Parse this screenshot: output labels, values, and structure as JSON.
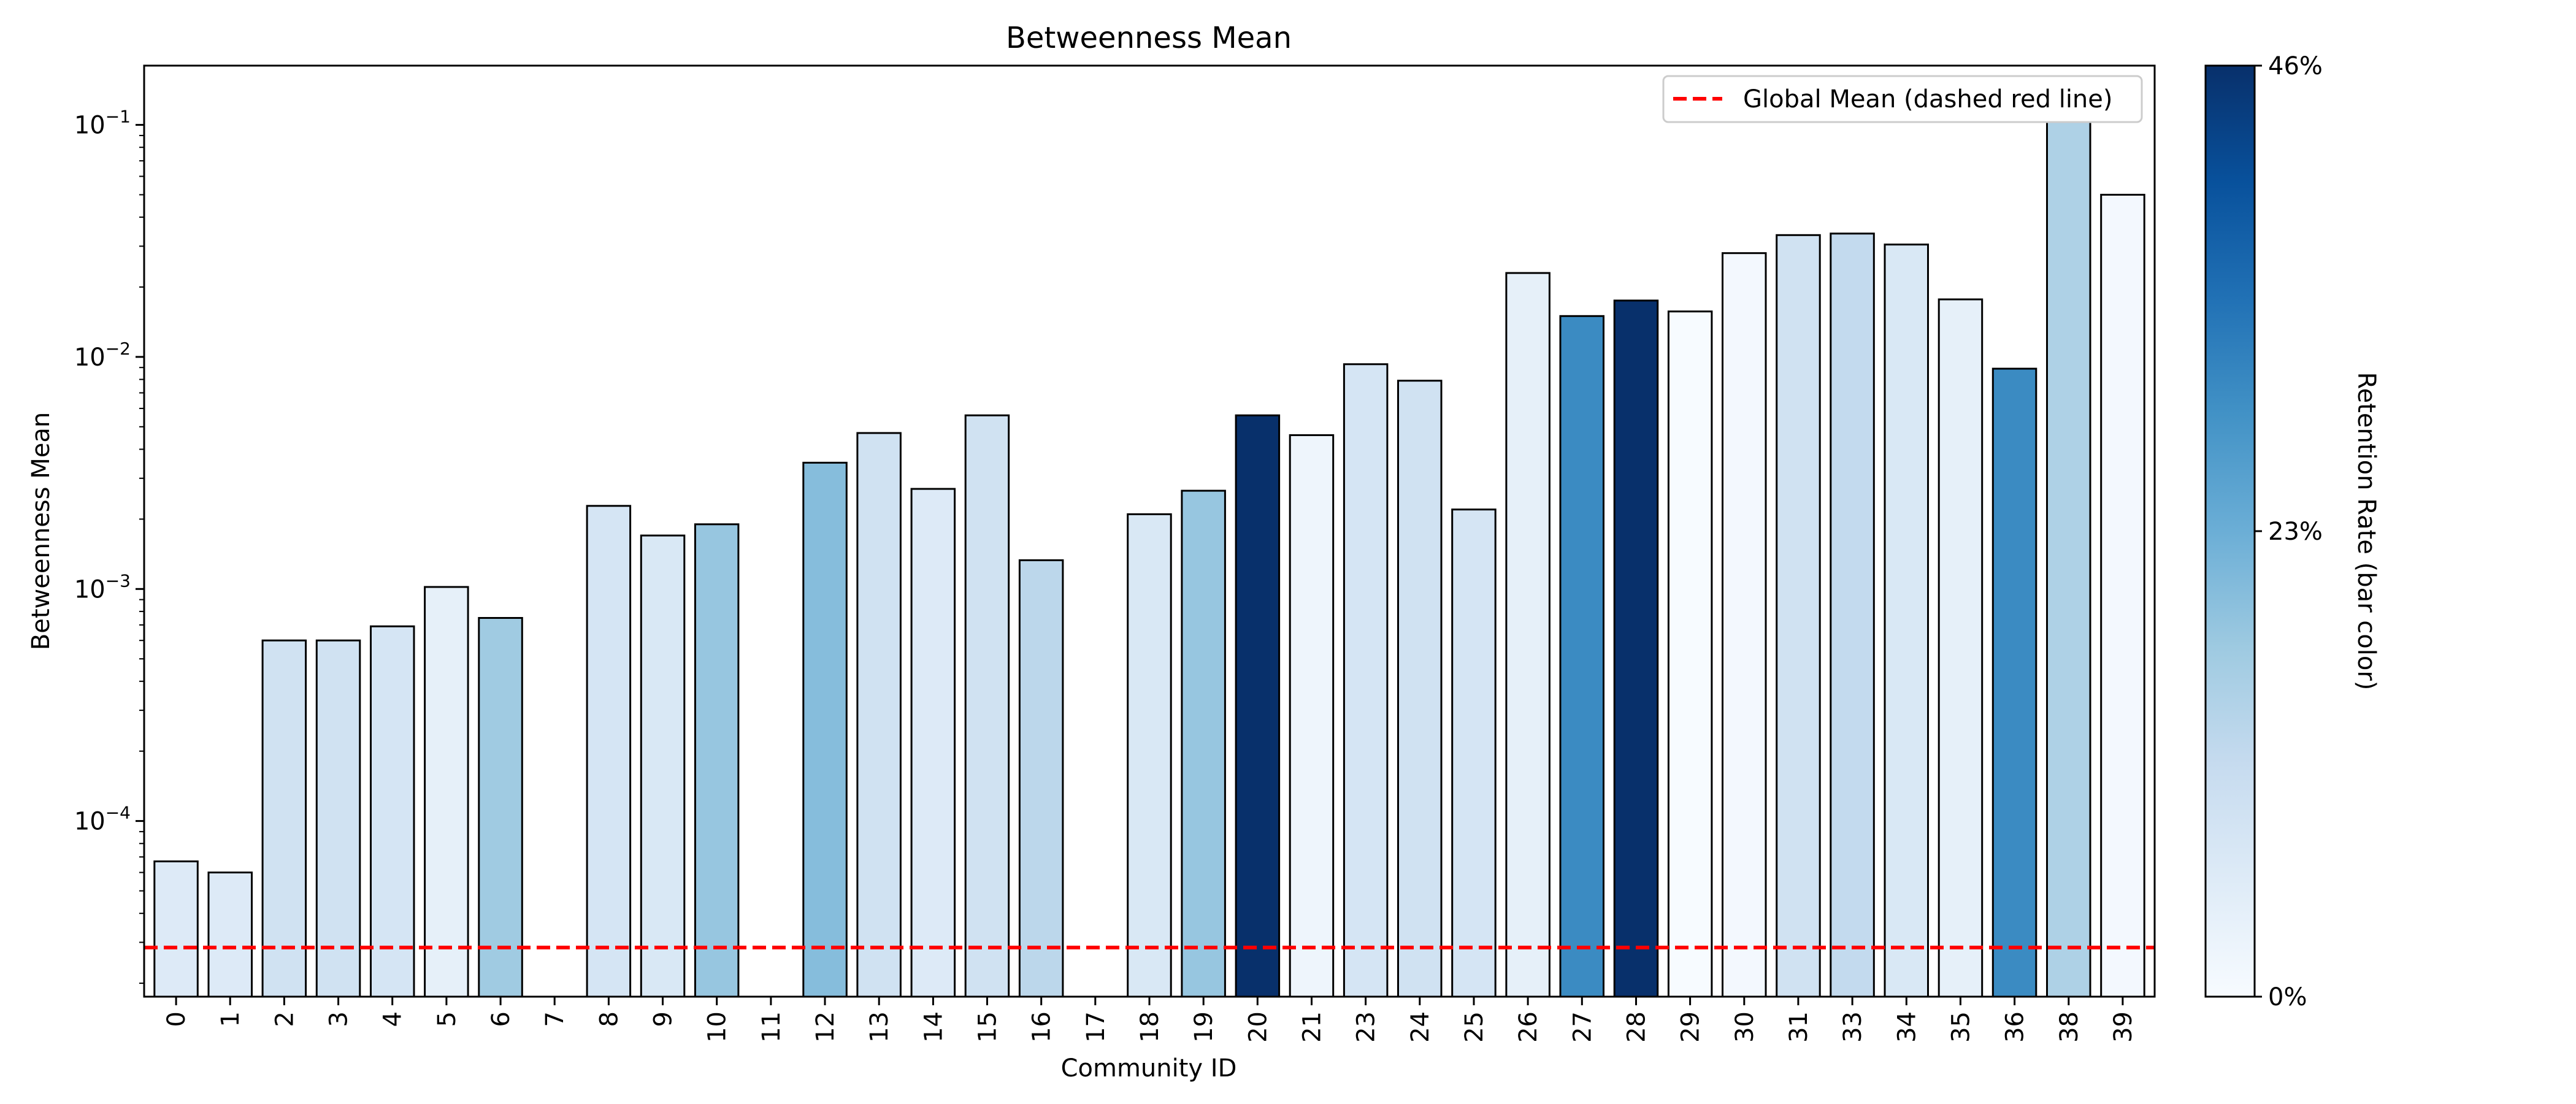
{
  "chart_data": {
    "type": "bar",
    "title": "Betweenness Mean",
    "xlabel": "Community ID",
    "ylabel": "Betweenness Mean",
    "yscale": "log",
    "ylim": [
      1.75e-05,
      0.18
    ],
    "y_ticks": [
      {
        "value": 0.0001,
        "base": "10",
        "exp": "−4"
      },
      {
        "value": 0.001,
        "base": "10",
        "exp": "−3"
      },
      {
        "value": 0.01,
        "base": "10",
        "exp": "−2"
      },
      {
        "value": 0.1,
        "base": "10",
        "exp": "−1"
      }
    ],
    "categories": [
      "0",
      "1",
      "2",
      "3",
      "4",
      "5",
      "6",
      "7",
      "8",
      "9",
      "10",
      "11",
      "12",
      "13",
      "14",
      "15",
      "16",
      "17",
      "18",
      "19",
      "20",
      "21",
      "23",
      "24",
      "25",
      "26",
      "27",
      "28",
      "29",
      "30",
      "31",
      "33",
      "34",
      "35",
      "36",
      "38",
      "39"
    ],
    "values": [
      6.7e-05,
      6e-05,
      0.0006,
      0.0006,
      0.00069,
      0.00102,
      0.00075,
      null,
      0.00228,
      0.0017,
      0.0019,
      null,
      0.0035,
      0.0047,
      0.0027,
      0.0056,
      0.00133,
      null,
      0.0021,
      0.00265,
      0.0056,
      0.0046,
      0.0093,
      0.0079,
      0.0022,
      0.023,
      0.015,
      0.0175,
      0.0157,
      0.028,
      0.0335,
      0.034,
      0.0305,
      0.0177,
      0.0089,
      0.115,
      0.05
    ],
    "retention_rate": [
      0.06,
      0.06,
      0.09,
      0.09,
      0.08,
      0.04,
      0.17,
      null,
      0.08,
      0.07,
      0.18,
      null,
      0.2,
      0.09,
      0.06,
      0.09,
      0.13,
      null,
      0.07,
      0.18,
      0.46,
      0.02,
      0.08,
      0.09,
      0.08,
      0.04,
      0.3,
      0.46,
      0.0,
      0.01,
      0.09,
      0.12,
      0.07,
      0.04,
      0.3,
      0.15,
      0.01
    ],
    "reference_line": {
      "label": "Global Mean (dashed red line)",
      "value": 2.85e-05,
      "color": "#ff0000",
      "style": "dashed"
    },
    "legend": {
      "placement": "top-right",
      "entries": [
        "Global Mean (dashed red line)"
      ]
    },
    "colorbar": {
      "label": "Retention Rate (bar color)",
      "min": 0,
      "max": 0.46,
      "ticks": [
        "0%",
        "23%",
        "46%"
      ],
      "colormap": "Blues",
      "colormap_stops": [
        "#f7fbff",
        "#deebf7",
        "#c6dbef",
        "#9ecae1",
        "#6baed6",
        "#4292c6",
        "#2171b5",
        "#08519c",
        "#08306b"
      ]
    },
    "bar_edge_color": "#000000",
    "grid": false
  }
}
